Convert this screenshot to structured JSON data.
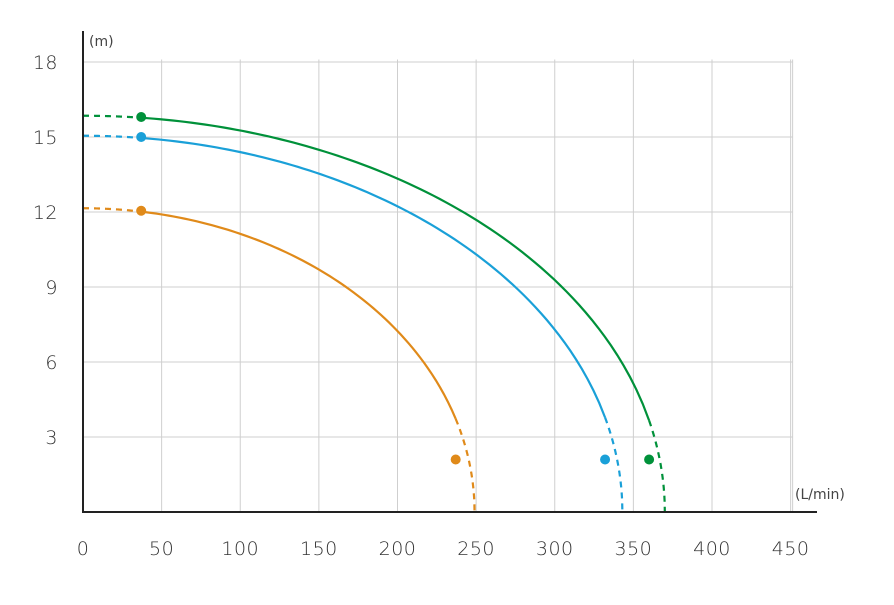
{
  "chart_data": {
    "type": "line",
    "x_unit": "(L/min)",
    "y_unit": "(m)",
    "xlim": [
      0,
      470
    ],
    "ylim": [
      0,
      19
    ],
    "x_ticks": [
      "0",
      "50",
      "100",
      "150",
      "200",
      "250",
      "300",
      "350",
      "400",
      "450"
    ],
    "y_ticks": [
      "3",
      "6",
      "9",
      "12",
      "15",
      "18"
    ],
    "grid": true,
    "series": [
      {
        "color": "#00913a",
        "h0": 15.85,
        "q_end": 370,
        "solid_range": [
          37,
          360
        ],
        "points": [
          [
            37,
            15.8
          ],
          [
            360,
            2.1
          ]
        ]
      },
      {
        "color": "#1aa0d8",
        "h0": 15.05,
        "q_end": 343,
        "solid_range": [
          37,
          332
        ],
        "points": [
          [
            37,
            15.0
          ],
          [
            332,
            2.1
          ]
        ]
      },
      {
        "color": "#e08a1a",
        "h0": 12.15,
        "q_end": 249,
        "solid_range": [
          37,
          237
        ],
        "points": [
          [
            37,
            12.05
          ],
          [
            237,
            2.1
          ]
        ]
      }
    ]
  }
}
